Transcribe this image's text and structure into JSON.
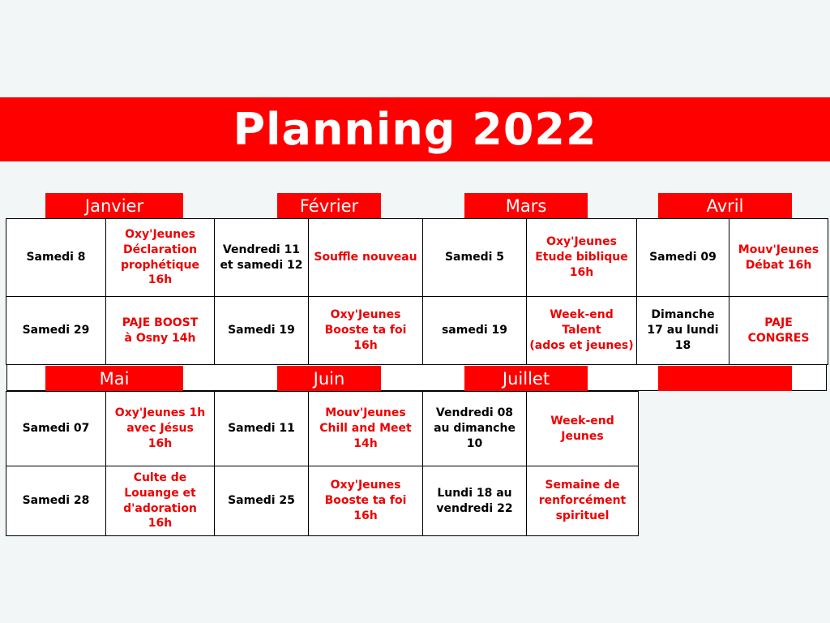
{
  "title": "Planning 2022",
  "colors": {
    "accent": "#ff0000",
    "event_text": "#ee0000",
    "background": "#f2f6f7"
  },
  "months_top": [
    "Janvier",
    "Février",
    "Mars",
    "Avril"
  ],
  "months_bottom": [
    "Mai",
    "Juin",
    "Juillet",
    ""
  ],
  "grid_top": [
    [
      "Samedi 8",
      "Oxy'Jeunes\nDéclaration\nprophétique\n16h",
      "Vendredi 11\net samedi 12",
      "Souffle nouveau",
      "Samedi 5",
      "Oxy'Jeunes\nEtude biblique\n16h",
      "Samedi 09",
      "Mouv'Jeunes\nDébat 16h"
    ],
    [
      "Samedi 29",
      "PAJE BOOST\nà Osny 14h",
      "Samedi 19",
      "Oxy'Jeunes\nBooste ta foi 16h",
      "samedi 19",
      "Week-end\nTalent\n(ados et jeunes)",
      "Dimanche\n17 au lundi 18",
      "PAJE CONGRES"
    ]
  ],
  "grid_bottom": [
    [
      "Samedi 07",
      "Oxy'Jeunes 1h\navec Jésus\n16h",
      "Samedi 11",
      "Mouv'Jeunes\nChill and Meet\n14h",
      "Vendredi 08\nau dimanche\n10",
      "Week-end\nJeunes"
    ],
    [
      "Samedi 28",
      "Culte de\nLouange et\nd'adoration\n16h",
      "Samedi 25",
      "Oxy'Jeunes\nBooste ta foi\n16h",
      "Lundi 18 au\nvendredi 22",
      "Semaine de\nrenforcément\nspirituel"
    ]
  ]
}
